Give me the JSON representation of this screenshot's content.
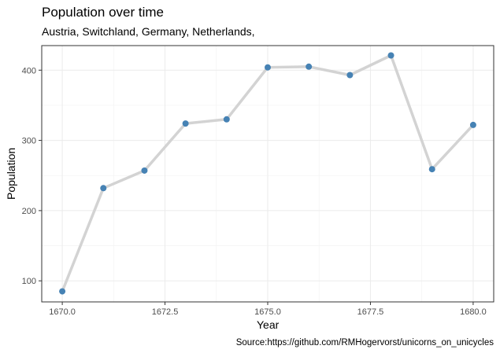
{
  "chart_data": {
    "type": "line",
    "title": "Population over time",
    "subtitle": "Austria, Switchland, Germany, Netherlands,",
    "xlabel": "Year",
    "ylabel": "Population",
    "caption": "Source:https://github.com/RMHogervorst/unicorns_on_unicycles",
    "x": [
      1670,
      1671,
      1672,
      1673,
      1674,
      1675,
      1676,
      1677,
      1678,
      1679,
      1680
    ],
    "y": [
      85,
      232,
      257,
      324,
      330,
      404,
      405,
      393,
      421,
      259,
      322
    ],
    "xlim": [
      1669.5,
      1680.5
    ],
    "ylim": [
      70,
      435
    ],
    "xticks": [
      1670,
      1672.5,
      1675,
      1677.5,
      1680
    ],
    "xtick_labels": [
      "1670.0",
      "1672.5",
      "1675.0",
      "1677.5",
      "1680.0"
    ],
    "yticks": [
      100,
      200,
      300,
      400
    ],
    "ytick_labels": [
      "100",
      "200",
      "300",
      "400"
    ],
    "grid": true,
    "line_color": "#d3d3d3",
    "point_color": "#4682b4"
  }
}
